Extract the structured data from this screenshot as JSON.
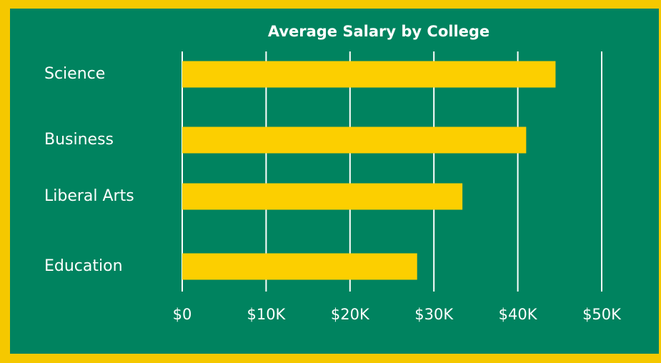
{
  "chart_data": {
    "type": "bar",
    "orientation": "horizontal",
    "title": "Average Salary by College",
    "categories": [
      "Science",
      "Business",
      "Liberal Arts",
      "Education"
    ],
    "values": [
      44500,
      41000,
      33400,
      28000
    ],
    "color": "#fccf00",
    "xlim": [
      0,
      50000
    ],
    "xticks": [
      {
        "value": 0,
        "label": "$0"
      },
      {
        "value": 10000,
        "label": "$10K"
      },
      {
        "value": 20000,
        "label": "$20K"
      },
      {
        "value": 30000,
        "label": "$30K"
      },
      {
        "value": 40000,
        "label": "$40K"
      },
      {
        "value": 50000,
        "label": "$50K"
      }
    ],
    "grid": true
  }
}
